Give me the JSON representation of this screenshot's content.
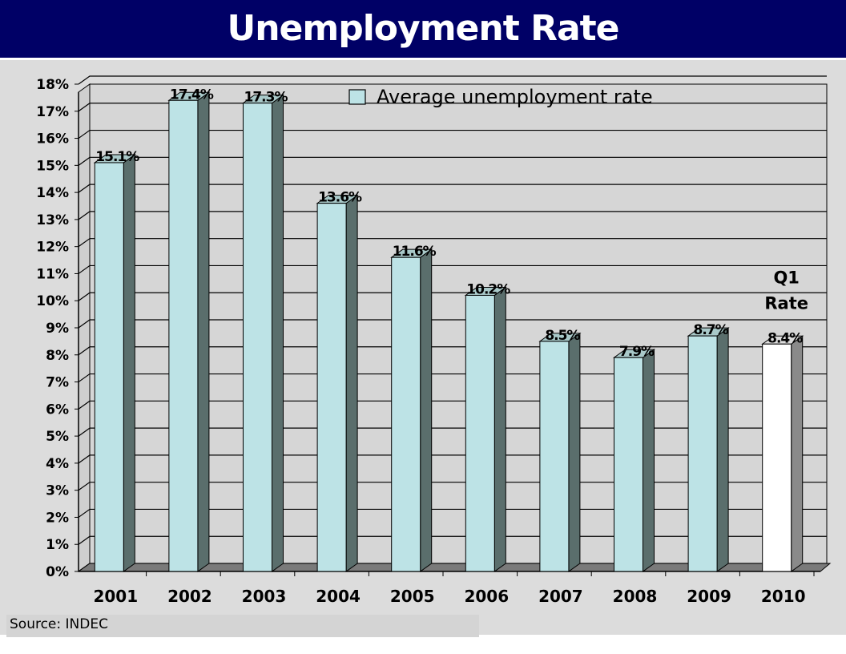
{
  "chart_data": {
    "type": "bar",
    "title": "Unemployment Rate",
    "categories": [
      "2001",
      "2002",
      "2003",
      "2004",
      "2005",
      "2006",
      "2007",
      "2008",
      "2009",
      "2010"
    ],
    "series": [
      {
        "name": "Average unemployment rate",
        "values": [
          15.1,
          17.4,
          17.3,
          13.6,
          11.6,
          10.2,
          8.5,
          7.9,
          8.7,
          8.4
        ],
        "labels": [
          "15.1%",
          "17.4%",
          "17.3%",
          "13.6%",
          "11.6%",
          "10.2%",
          "8.5%",
          "7.9%",
          "8.7%",
          "8.4%"
        ]
      }
    ],
    "highlight": {
      "category": "2010",
      "note_lines": [
        "Q1",
        "Rate"
      ],
      "color": "#ffffff"
    },
    "ylim": [
      0,
      18
    ],
    "yticks": [
      "0%",
      "1%",
      "2%",
      "3%",
      "4%",
      "5%",
      "6%",
      "7%",
      "8%",
      "9%",
      "10%",
      "11%",
      "12%",
      "13%",
      "14%",
      "15%",
      "16%",
      "17%",
      "18%"
    ],
    "grid": true,
    "legend_position": "top-center",
    "xlabel": "",
    "ylabel": "",
    "colors": {
      "bar": "#bde3e6",
      "bar_side": "#5a6e6c",
      "floor": "#7a7a7a",
      "title_bg": "#000066"
    }
  },
  "source": "Source: INDEC"
}
